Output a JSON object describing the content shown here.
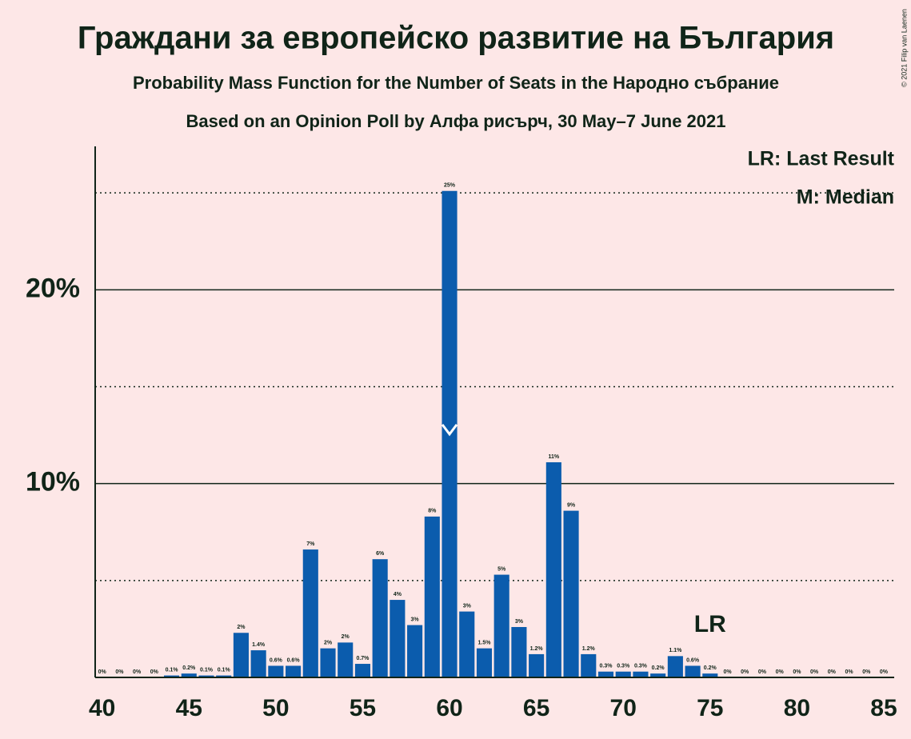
{
  "chart_data": {
    "type": "bar",
    "title": "Граждани за европейско развитие на България",
    "subtitle": "Probability Mass Function for the Number of Seats in the Народно събрание",
    "subtitle2": "Based on an Opinion Poll by Алфа рисърч, 30 May–7 June 2021",
    "copyright": "© 2021 Filip van Laenen",
    "x": [
      40,
      41,
      42,
      43,
      44,
      45,
      46,
      47,
      48,
      49,
      50,
      51,
      52,
      53,
      54,
      55,
      56,
      57,
      58,
      59,
      60,
      61,
      62,
      63,
      64,
      65,
      66,
      67,
      68,
      69,
      70,
      71,
      72,
      73,
      74,
      75,
      76,
      77,
      78,
      79,
      80,
      81,
      82,
      83,
      84,
      85
    ],
    "values": [
      0,
      0,
      0,
      0,
      0.1,
      0.2,
      0.1,
      0.1,
      2.3,
      1.4,
      0.6,
      0.6,
      6.6,
      1.5,
      1.8,
      0.7,
      6.1,
      4.0,
      2.7,
      8.3,
      25.1,
      3.4,
      1.5,
      5.3,
      2.6,
      1.2,
      11.1,
      8.6,
      1.2,
      0.3,
      0.3,
      0.3,
      0.2,
      1.1,
      0.6,
      0.2,
      0,
      0,
      0,
      0,
      0,
      0,
      0,
      0,
      0,
      0
    ],
    "value_labels": [
      "0%",
      "0%",
      "0%",
      "0%",
      "0.1%",
      "0.2%",
      "0.1%",
      "0.1%",
      "2%",
      "1.4%",
      "0.6%",
      "0.6%",
      "7%",
      "2%",
      "2%",
      "0.7%",
      "6%",
      "4%",
      "3%",
      "8%",
      "25%",
      "3%",
      "1.5%",
      "5%",
      "3%",
      "1.2%",
      "11%",
      "9%",
      "1.2%",
      "0.3%",
      "0.3%",
      "0.3%",
      "0.2%",
      "1.1%",
      "0.6%",
      "0.2%",
      "0%",
      "0%",
      "0%",
      "0%",
      "0%",
      "0%",
      "0%",
      "0%",
      "0%",
      "0%"
    ],
    "color": "#0b5cad",
    "xlim": [
      39.6,
      85.6
    ],
    "xticks": [
      40,
      45,
      50,
      55,
      60,
      65,
      70,
      75,
      80,
      85
    ],
    "ylim": [
      0,
      27.4
    ],
    "yticks": [
      {
        "value": 10,
        "label": "10%"
      },
      {
        "value": 20,
        "label": "20%"
      }
    ],
    "minor_gridlines": [
      5,
      15,
      25
    ],
    "median": {
      "x": 60,
      "label": "M: Median"
    },
    "last_result": {
      "x": 75,
      "marker": "LR",
      "label": "LR: Last Result"
    }
  }
}
